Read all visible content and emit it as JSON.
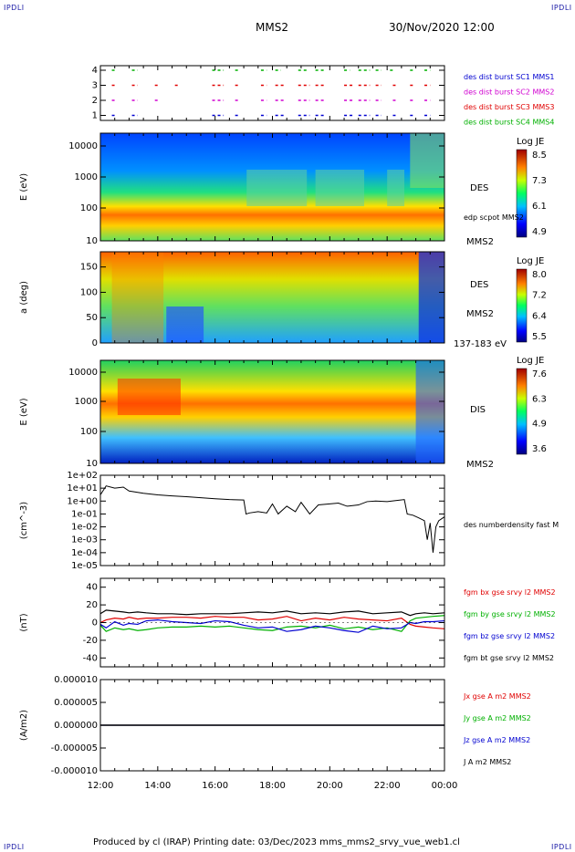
{
  "corners": {
    "top_left": "IPDLI",
    "top_right": "IPDLI",
    "bottom_left": "IPDLI",
    "bottom_right": "IPDLI"
  },
  "header": {
    "spacecraft": "MMS2",
    "datetime": "30/Nov/2020 12:00"
  },
  "footer": {
    "text": "Produced by cl (IRAP)   Printing date: 03/Dec/2023   mms_mms2_srvy_vue_web1.cl"
  },
  "time_axis": {
    "ticks": [
      "12:00",
      "14:00",
      "16:00",
      "18:00",
      "20:00",
      "22:00",
      "00:00"
    ],
    "range_hours": [
      12,
      24
    ]
  },
  "colors": {
    "red": "#e00000",
    "green": "#00b000",
    "blue": "#0000d0",
    "magenta": "#d000d0",
    "black": "#000000"
  },
  "chart_data": [
    {
      "type": "scatter",
      "panel": "burst",
      "yticks": [
        "4",
        "3",
        "2",
        "1"
      ],
      "legend": [
        "des dist burst SC1 MMS1",
        "des dist burst SC2 MMS2",
        "des dist burst SC3 MMS3",
        "des dist burst SC4 MMS4"
      ],
      "legend_colors": [
        "#0000d0",
        "#d000d0",
        "#e00000",
        "#00b000"
      ],
      "series": [
        {
          "level": 4,
          "color": "#00b000",
          "segments": [
            [
              12.4,
              12.5
            ],
            [
              13.1,
              13.3
            ],
            [
              15.9,
              16.3
            ],
            [
              16.7,
              16.8
            ],
            [
              17.6,
              17.8
            ],
            [
              18.1,
              18.3
            ],
            [
              18.9,
              19.2
            ],
            [
              19.5,
              19.8
            ],
            [
              20.5,
              20.7
            ],
            [
              21.0,
              21.4
            ],
            [
              21.6,
              21.8
            ],
            [
              22.1,
              22.2
            ],
            [
              22.8,
              22.9
            ],
            [
              23.3,
              23.5
            ]
          ]
        },
        {
          "level": 3,
          "color": "#e00000",
          "segments": [
            [
              12.4,
              12.5
            ],
            [
              13.1,
              13.3
            ],
            [
              13.9,
              14.0
            ],
            [
              14.6,
              14.7
            ],
            [
              15.9,
              16.3
            ],
            [
              16.7,
              16.8
            ],
            [
              17.6,
              17.8
            ],
            [
              18.1,
              18.4
            ],
            [
              18.9,
              19.3
            ],
            [
              19.5,
              19.8
            ],
            [
              20.5,
              20.8
            ],
            [
              21.0,
              21.4
            ],
            [
              21.6,
              21.8
            ],
            [
              22.2,
              22.3
            ],
            [
              22.8,
              22.9
            ],
            [
              23.3,
              23.5
            ]
          ]
        },
        {
          "level": 2,
          "color": "#d000d0",
          "segments": [
            [
              12.4,
              12.5
            ],
            [
              13.1,
              13.3
            ],
            [
              13.9,
              14.0
            ],
            [
              15.9,
              16.3
            ],
            [
              16.7,
              16.8
            ],
            [
              17.6,
              17.8
            ],
            [
              18.1,
              18.4
            ],
            [
              18.9,
              19.3
            ],
            [
              19.5,
              19.8
            ],
            [
              20.5,
              20.8
            ],
            [
              21.0,
              21.4
            ],
            [
              21.6,
              21.8
            ],
            [
              22.2,
              22.3
            ],
            [
              22.8,
              22.9
            ],
            [
              23.3,
              23.5
            ]
          ]
        },
        {
          "level": 1,
          "color": "#0000d0",
          "segments": [
            [
              12.4,
              12.5
            ],
            [
              13.1,
              13.3
            ],
            [
              15.9,
              16.3
            ],
            [
              16.7,
              16.8
            ],
            [
              17.6,
              17.8
            ],
            [
              18.1,
              18.4
            ],
            [
              18.9,
              19.3
            ],
            [
              19.5,
              19.8
            ],
            [
              20.5,
              20.8
            ],
            [
              21.0,
              21.4
            ],
            [
              21.6,
              21.8
            ],
            [
              22.2,
              22.3
            ],
            [
              22.8,
              22.9
            ],
            [
              23.3,
              23.5
            ]
          ]
        }
      ]
    },
    {
      "type": "heatmap",
      "panel": "des_energy",
      "ylabel": "E (eV)",
      "yticks": [
        "10000",
        "1000",
        "100",
        "10"
      ],
      "label": "DES",
      "label2": "MMS2",
      "overlay_label": "edp scpot MMS2",
      "colorbar": {
        "title": "Log JE",
        "ticks": [
          "8.5",
          "7.3",
          "6.1",
          "4.9"
        ]
      }
    },
    {
      "type": "heatmap",
      "panel": "des_pitch",
      "ylabel": "a (deg)",
      "yticks": [
        "150",
        "100",
        "50",
        "0"
      ],
      "label": "DES",
      "label2": "MMS2",
      "energy_band": "137-183 eV",
      "colorbar": {
        "title": "Log JE",
        "ticks": [
          "8.0",
          "7.2",
          "6.4",
          "5.5"
        ]
      }
    },
    {
      "type": "heatmap",
      "panel": "dis_energy",
      "ylabel": "E (eV)",
      "yticks": [
        "10000",
        "1000",
        "100",
        "10"
      ],
      "label": "DIS",
      "label2": "MMS2",
      "colorbar": {
        "title": "Log JE",
        "ticks": [
          "7.6",
          "6.3",
          "4.9",
          "3.6"
        ]
      }
    },
    {
      "type": "line",
      "panel": "density",
      "ylabel": "(cm^-3)",
      "yticks": [
        "1e+02",
        "1e+01",
        "1e+00",
        "1e-01",
        "1e-02",
        "1e-03",
        "1e-04",
        "1e-05"
      ],
      "ylim_log10": [
        -5,
        2
      ],
      "legend": [
        "des numberdensity fast M"
      ],
      "x": [
        12.0,
        12.2,
        12.5,
        12.8,
        13.0,
        13.5,
        14.0,
        14.5,
        15.0,
        15.5,
        16.0,
        16.5,
        17.0,
        17.08,
        17.2,
        17.5,
        17.8,
        18.0,
        18.2,
        18.5,
        18.8,
        19.0,
        19.3,
        19.6,
        20.0,
        20.3,
        20.6,
        21.0,
        21.3,
        21.6,
        22.0,
        22.3,
        22.6,
        22.7,
        22.9,
        23.1,
        23.3,
        23.4,
        23.5,
        23.6,
        23.7,
        23.8,
        24.0
      ],
      "y": [
        3,
        15,
        10,
        12,
        6,
        4,
        3,
        2.5,
        2.2,
        1.8,
        1.5,
        1.3,
        1.2,
        0.1,
        0.12,
        0.15,
        0.12,
        0.6,
        0.1,
        0.4,
        0.15,
        0.8,
        0.1,
        0.5,
        0.6,
        0.7,
        0.4,
        0.5,
        0.9,
        1.0,
        0.9,
        1.1,
        1.3,
        0.1,
        0.08,
        0.05,
        0.03,
        0.001,
        0.02,
        0.0001,
        0.01,
        0.03,
        0.06
      ]
    },
    {
      "type": "line",
      "panel": "magnetic_field",
      "ylabel": "(nT)",
      "yticks": [
        "40",
        "20",
        "0",
        "-20",
        "-40"
      ],
      "ylim": [
        -50,
        50
      ],
      "x": [
        12.0,
        12.2,
        12.5,
        12.8,
        13.0,
        13.3,
        13.6,
        14.0,
        14.5,
        15.0,
        15.5,
        16.0,
        16.5,
        17.0,
        17.5,
        18.0,
        18.5,
        19.0,
        19.5,
        20.0,
        20.5,
        21.0,
        21.5,
        22.0,
        22.5,
        22.8,
        23.0,
        23.3,
        23.6,
        24.0
      ],
      "series": [
        {
          "name": "fgm bx gse srvy l2 MMS2",
          "color": "#e00000",
          "values": [
            0,
            3,
            5,
            4,
            6,
            4,
            5,
            5,
            6,
            6,
            5,
            7,
            6,
            6,
            3,
            4,
            7,
            2,
            5,
            3,
            6,
            4,
            3,
            2,
            5,
            -2,
            -4,
            -5,
            -6,
            -7
          ]
        },
        {
          "name": "fgm by gse srvy l2 MMS2",
          "color": "#00b000",
          "values": [
            -3,
            -10,
            -6,
            -8,
            -7,
            -9,
            -8,
            -6,
            -5,
            -5,
            -4,
            -5,
            -4,
            -6,
            -8,
            -9,
            -5,
            -4,
            -6,
            -3,
            -7,
            -5,
            -8,
            -6,
            -10,
            2,
            5,
            6,
            7,
            8
          ]
        },
        {
          "name": "fgm bz gse srvy l2 MMS2",
          "color": "#0000d0",
          "values": [
            -2,
            -6,
            1,
            -3,
            -1,
            -2,
            2,
            3,
            1,
            0,
            -1,
            2,
            1,
            -3,
            -6,
            -5,
            -10,
            -8,
            -4,
            -6,
            -9,
            -11,
            -4,
            -7,
            -6,
            0,
            -1,
            1,
            1,
            2
          ]
        },
        {
          "name": "fgm bt gse srvy l2 MMS2",
          "color": "#000000",
          "values": [
            10,
            14,
            13,
            12,
            11,
            12,
            11,
            10,
            10,
            9,
            10,
            10,
            10,
            11,
            12,
            11,
            13,
            10,
            11,
            10,
            12,
            13,
            10,
            11,
            12,
            8,
            10,
            11,
            10,
            11
          ]
        }
      ]
    },
    {
      "type": "line",
      "panel": "current_density",
      "ylabel": "(A/m2)",
      "yticks": [
        "0.000010",
        "0.000005",
        "0.000000",
        "-0.000005",
        "-0.000010"
      ],
      "ylim": [
        -1e-05,
        1e-05
      ],
      "x": [
        12,
        24
      ],
      "series": [
        {
          "name": "Jx gse A m2 MMS2",
          "color": "#e00000",
          "values": [
            0,
            0
          ]
        },
        {
          "name": "Jy gse A m2 MMS2",
          "color": "#00b000",
          "values": [
            0,
            0
          ]
        },
        {
          "name": "Jz gse A m2 MMS2",
          "color": "#0000d0",
          "values": [
            0,
            0
          ]
        },
        {
          "name": "J A m2 MMS2",
          "color": "#000000",
          "values": [
            0,
            0
          ]
        }
      ]
    }
  ]
}
